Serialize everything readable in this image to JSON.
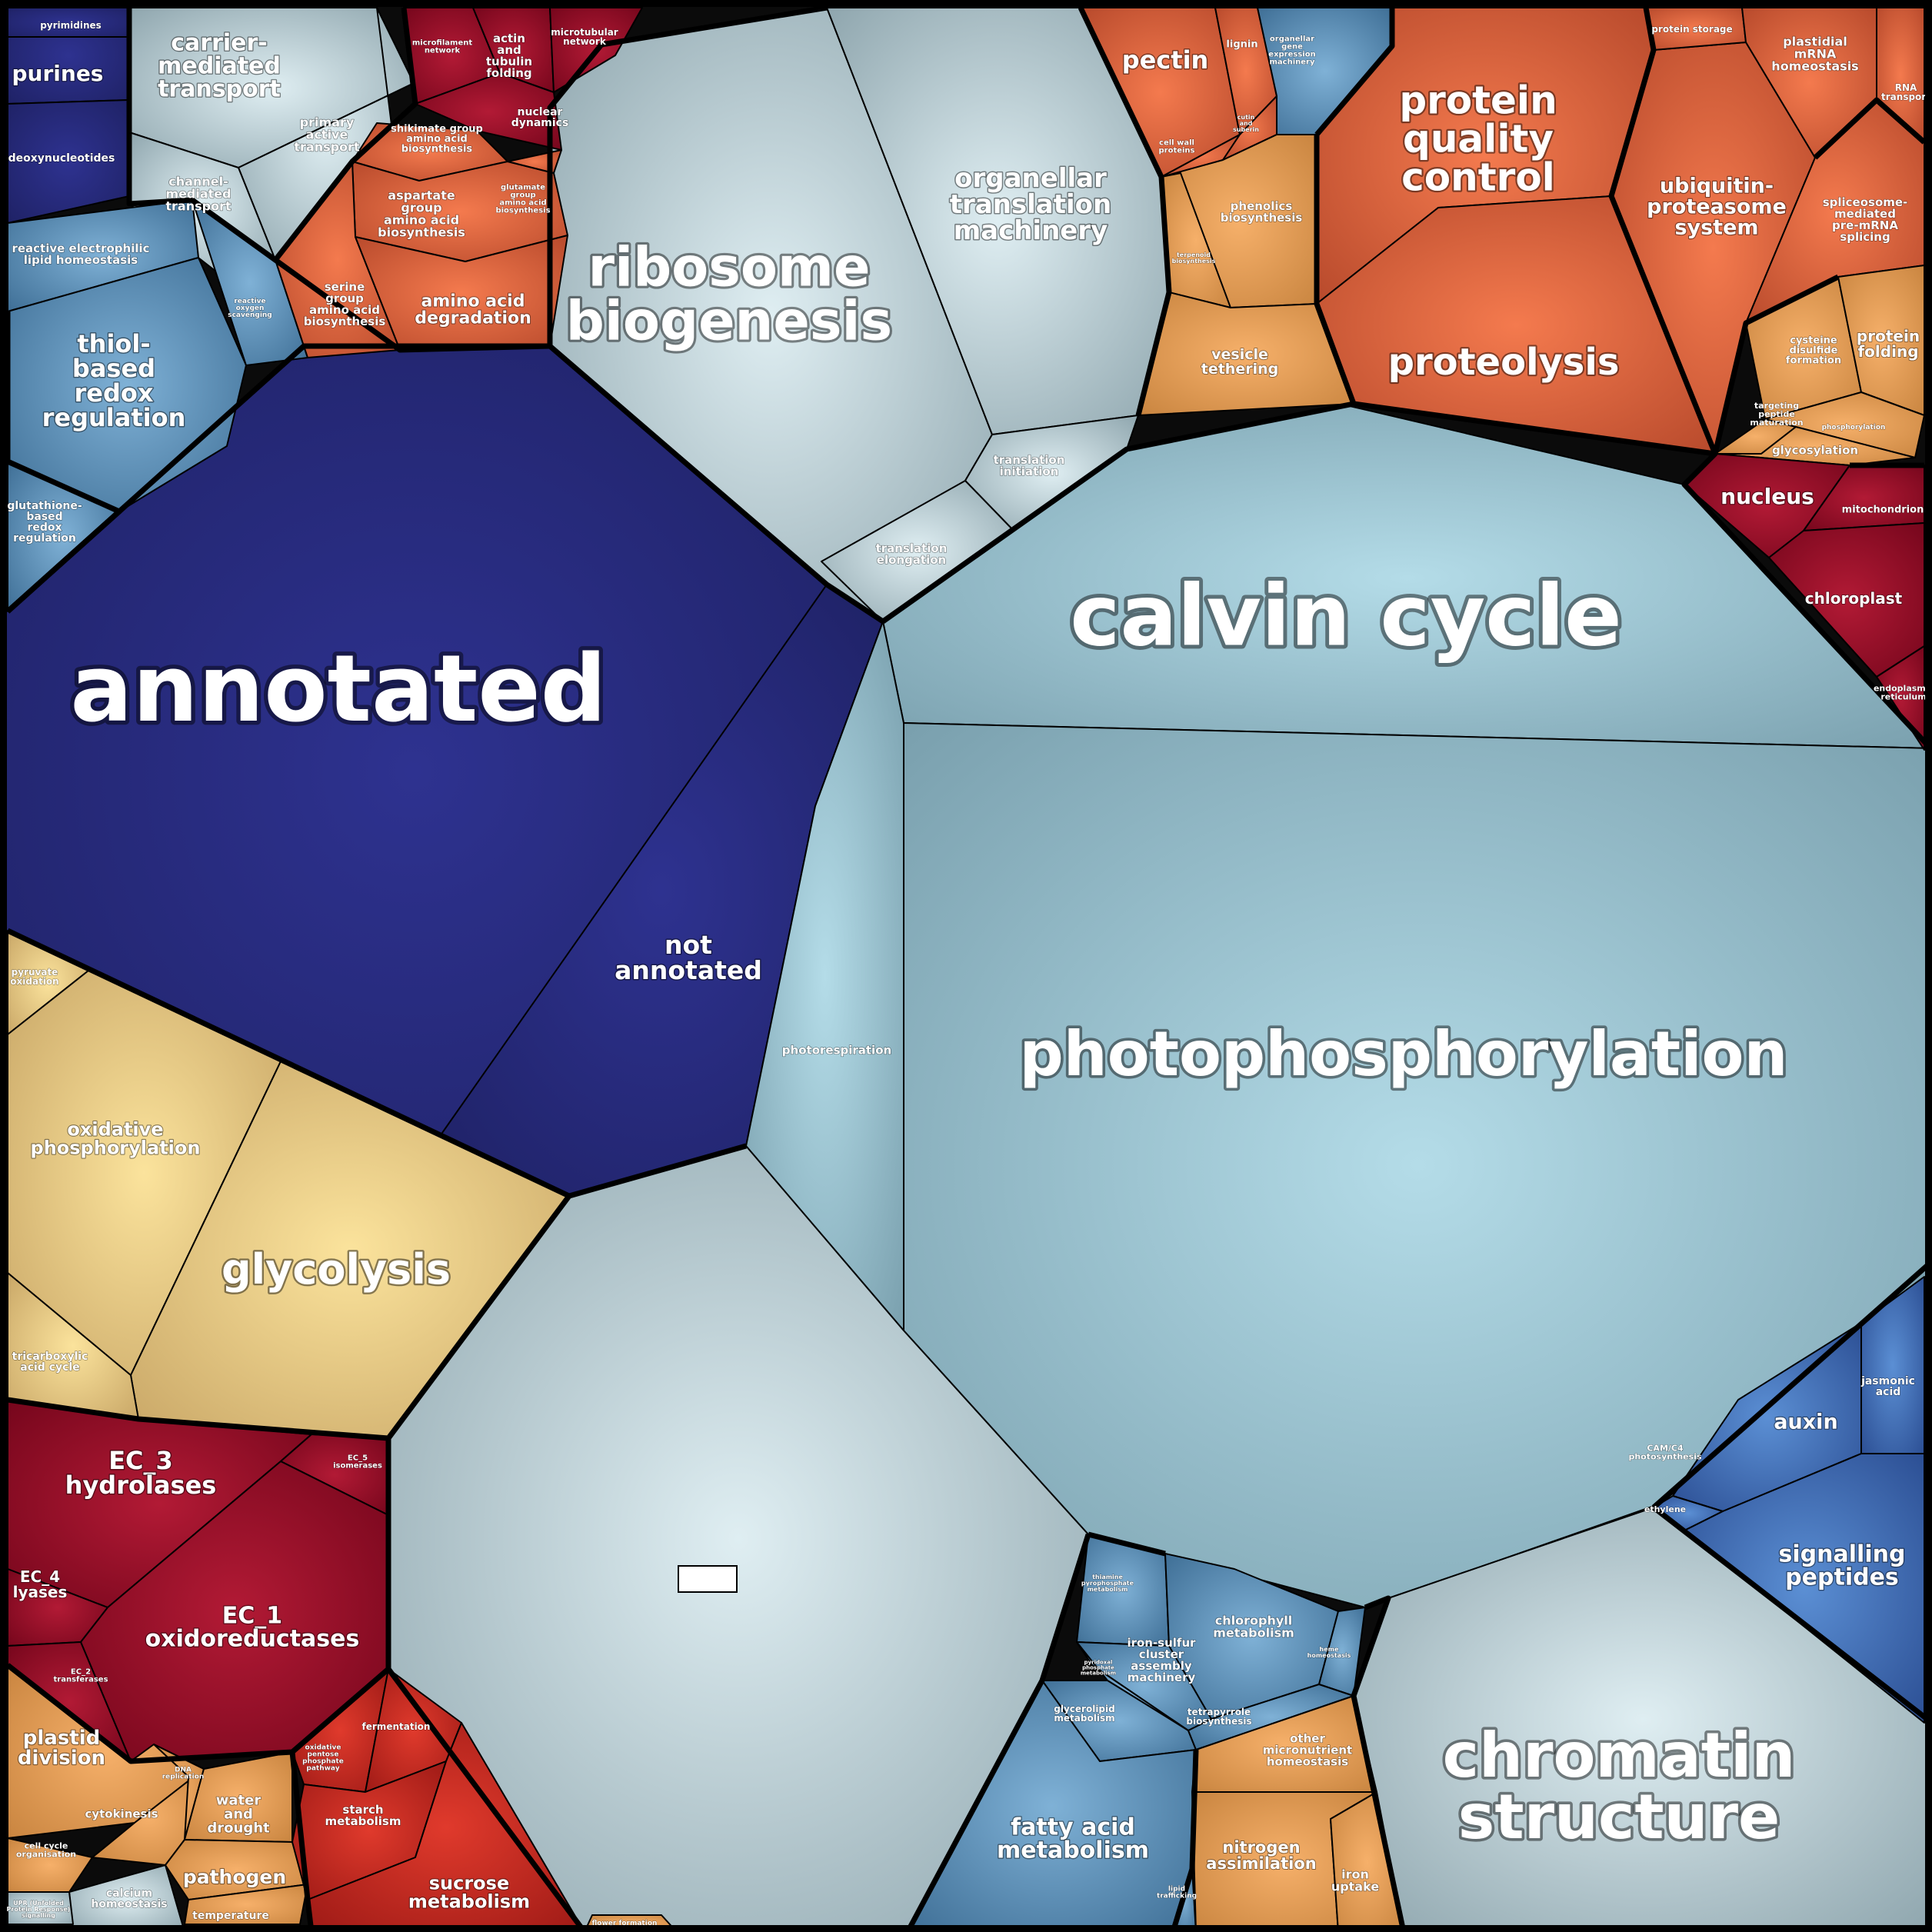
{
  "palette": {
    "navy": [
      "#2e3290",
      "#1f2266"
    ],
    "slate": [
      "#dfeef2",
      "#8fa6ae"
    ],
    "lightblue": [
      "#b4dce8",
      "#7aa0ae"
    ],
    "steel": [
      "#7fb1d6",
      "#3f6f96"
    ],
    "royal": [
      "#5b8fd4",
      "#2c4f94"
    ],
    "tan": [
      "#fbe39c",
      "#c9a767"
    ],
    "orange": [
      "#f6b06a",
      "#c98540"
    ],
    "vermilion": [
      "#f47a4e",
      "#b84a2c"
    ],
    "red": [
      "#e03a2c",
      "#9e1a16"
    ],
    "crimson": [
      "#b21a35",
      "#76061c"
    ]
  },
  "cells": [
    {
      "label": "annotated",
      "color": "navy"
    },
    {
      "label": "not\nannotated",
      "color": "navy"
    },
    {
      "label": "calvin cycle",
      "color": "lightblue"
    },
    {
      "label": "photophosphorylation",
      "color": "lightblue"
    },
    {
      "label": "photorespiration",
      "color": "lightblue"
    },
    {
      "label": "CAM/C4\nphotosynthesis",
      "color": "lightblue"
    },
    {
      "label": "",
      "color": "slate"
    },
    {
      "label": "ribosome\nbiogenesis",
      "color": "slate"
    },
    {
      "label": "organellar\ntranslation\nmachinery",
      "color": "slate"
    },
    {
      "label": "translation\ninitiation",
      "color": "slate"
    },
    {
      "label": "translation\nelongation",
      "color": "slate"
    },
    {
      "label": "chromatin\nstructure",
      "color": "slate"
    },
    {
      "label": "carrier-\nmediated\ntransport",
      "color": "slate"
    },
    {
      "label": "primary\nactive\ntransport",
      "color": "slate"
    },
    {
      "label": "channel-\nmediated\ntransport",
      "color": "slate"
    },
    {
      "label": "calcium\nhomeostasis",
      "color": "slate"
    },
    {
      "label": "purines",
      "color": "navy"
    },
    {
      "label": "deoxynucleotides",
      "color": "navy"
    },
    {
      "label": "pyrimidines",
      "color": "navy"
    },
    {
      "label": "reactive electrophilic\nlipid homeostasis",
      "color": "steel"
    },
    {
      "label": "thiol-\nbased\nredox\nregulation",
      "color": "steel"
    },
    {
      "label": "reactive\noxygen\nscavenging",
      "color": "steel"
    },
    {
      "label": "glutathione-\nbased\nredox\nregulation",
      "color": "steel"
    },
    {
      "label": "microfilament\nnetwork",
      "color": "crimson"
    },
    {
      "label": "actin\nand\ntubulin\nfolding",
      "color": "crimson"
    },
    {
      "label": "microtubular\nnetwork",
      "color": "crimson"
    },
    {
      "label": "nuclear\ndynamics",
      "color": "crimson"
    },
    {
      "label": "shikimate group\namino acid\nbiosynthesis",
      "color": "vermilion"
    },
    {
      "label": "aspartate\ngroup\namino acid\nbiosynthesis",
      "color": "vermilion"
    },
    {
      "label": "glutamate\ngroup\namino acid\nbiosynthesis",
      "color": "vermilion"
    },
    {
      "label": "serine\ngroup\namino acid\nbiosynthesis",
      "color": "vermilion"
    },
    {
      "label": "amino acid\ndegradation",
      "color": "vermilion"
    },
    {
      "label": "pectin",
      "color": "vermilion"
    },
    {
      "label": "lignin",
      "color": "vermilion"
    },
    {
      "label": "cell wall\nproteins",
      "color": "vermilion"
    },
    {
      "label": "cutin\nand\nsuberin",
      "color": "vermilion"
    },
    {
      "label": "organellar\ngene\nexpression\nmachinery",
      "color": "steel"
    },
    {
      "label": "phenolics\nbiosynthesis",
      "color": "orange"
    },
    {
      "label": "terpenoid\nbiosynthesis",
      "color": "orange"
    },
    {
      "label": "vesicle\ntethering",
      "color": "orange"
    },
    {
      "label": "protein\nquality\ncontrol",
      "color": "vermilion"
    },
    {
      "label": "ubiquitin-\nproteasome\nsystem",
      "color": "vermilion"
    },
    {
      "label": "proteolysis",
      "color": "vermilion"
    },
    {
      "label": "protein storage",
      "color": "vermilion"
    },
    {
      "label": "plastidial\nmRNA\nhomeostasis",
      "color": "vermilion"
    },
    {
      "label": "RNA\ntransport",
      "color": "vermilion"
    },
    {
      "label": "spliceosome-\nmediated\npre-mRNA\nsplicing",
      "color": "vermilion"
    },
    {
      "label": "cysteine\ndisulfide\nformation",
      "color": "orange"
    },
    {
      "label": "protein\nfolding",
      "color": "orange"
    },
    {
      "label": "targeting\npeptide\nmaturation",
      "color": "orange"
    },
    {
      "label": "phosphorylation",
      "color": "orange"
    },
    {
      "label": "glycosylation",
      "color": "orange"
    },
    {
      "label": "nucleus",
      "color": "crimson"
    },
    {
      "label": "mitochondrion",
      "color": "crimson"
    },
    {
      "label": "chloroplast",
      "color": "crimson"
    },
    {
      "label": "endoplasmic\nreticulum",
      "color": "crimson"
    },
    {
      "label": "pyruvate\noxidation",
      "color": "tan"
    },
    {
      "label": "oxidative\nphosphorylation",
      "color": "tan"
    },
    {
      "label": "glycolysis",
      "color": "tan"
    },
    {
      "label": "tricarboxylic\nacid cycle",
      "color": "tan"
    },
    {
      "label": "EC_3\nhydrolases",
      "color": "crimson"
    },
    {
      "label": "EC_5\nisomerases",
      "color": "crimson"
    },
    {
      "label": "EC_4\nlyases",
      "color": "crimson"
    },
    {
      "label": "EC_1\noxidoreductases",
      "color": "crimson"
    },
    {
      "label": "EC_2\ntransferases",
      "color": "crimson"
    },
    {
      "label": "plastid\ndivision",
      "color": "orange"
    },
    {
      "label": "cytokinesis",
      "color": "orange"
    },
    {
      "label": "DNA\nreplication",
      "color": "orange"
    },
    {
      "label": "cell cycle\norganisation",
      "color": "orange"
    },
    {
      "label": "water\nand\ndrought",
      "color": "orange"
    },
    {
      "label": "pathogen",
      "color": "orange"
    },
    {
      "label": "temperature",
      "color": "orange"
    },
    {
      "label": "UPR (Unfolded\nProtein Response)\nsignalling",
      "color": "slate"
    },
    {
      "label": "oxidative\npentose\nphosphate\npathway",
      "color": "red"
    },
    {
      "label": "fermentation",
      "color": "red"
    },
    {
      "label": "starch\nmetabolism",
      "color": "red"
    },
    {
      "label": "sucrose\nmetabolism",
      "color": "red"
    },
    {
      "label": "flower formation",
      "color": "orange"
    },
    {
      "label": "thiamine\npyrophosphate\nmetabolism",
      "color": "steel"
    },
    {
      "label": "iron-sulfur\ncluster\nassembly\nmachinery",
      "color": "steel"
    },
    {
      "label": "chlorophyll\nmetabolism",
      "color": "steel"
    },
    {
      "label": "heme\nhomeostasis",
      "color": "steel"
    },
    {
      "label": "pyridoxal\nphosphate\nmetabolism",
      "color": "steel"
    },
    {
      "label": "glycerolipid\nmetabolism",
      "color": "steel"
    },
    {
      "label": "tetrapyrrole\nbiosynthesis",
      "color": "steel"
    },
    {
      "label": "fatty acid\nmetabolism",
      "color": "steel"
    },
    {
      "label": "lipid\ntrafficking",
      "color": "steel"
    },
    {
      "label": "other\nmicronutrient\nhomeostasis",
      "color": "orange"
    },
    {
      "label": "nitrogen\nassimilation",
      "color": "orange"
    },
    {
      "label": "iron\nuptake",
      "color": "orange"
    },
    {
      "label": "auxin",
      "color": "royal"
    },
    {
      "label": "jasmonic\nacid",
      "color": "royal"
    },
    {
      "label": "ethylene",
      "color": "royal"
    },
    {
      "label": "signalling\npeptides",
      "color": "royal"
    }
  ]
}
